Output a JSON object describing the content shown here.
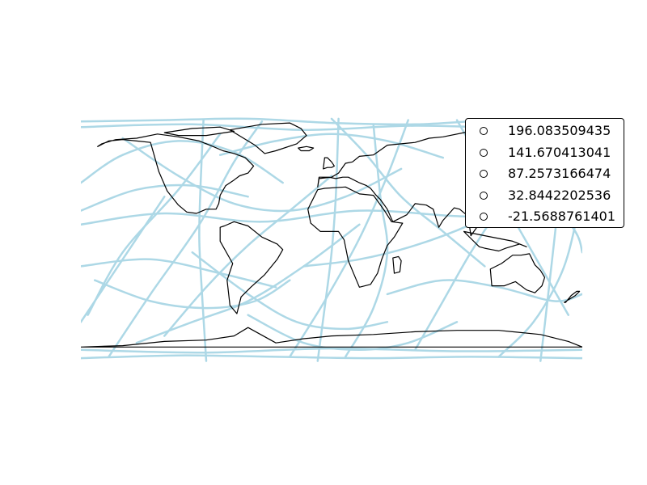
{
  "chart_data": {
    "type": "line",
    "title": "",
    "xlabel": "",
    "ylabel": "",
    "projection": "equirectangular",
    "xlim": [
      -180,
      180
    ],
    "ylim": [
      -90,
      90
    ],
    "grid": false,
    "axes_visible": false,
    "coastline_color": "#000000",
    "track_color": "#add8e6",
    "legend": {
      "placement": "upper right",
      "marker": "open circle",
      "entries": [
        "196.083509435",
        "141.670413041",
        "87.2573166474",
        "32.8442202536",
        "-21.5688761401"
      ]
    },
    "series": [
      {
        "lon": [
          -180,
          -120,
          -60,
          0,
          60,
          120,
          180
        ],
        "lat": [
          84,
          85,
          86,
          83,
          82,
          85,
          84
        ]
      },
      {
        "lon": [
          -180,
          -100,
          -20,
          60,
          140,
          180
        ],
        "lat": [
          80,
          82,
          78,
          81,
          79,
          80
        ]
      },
      {
        "lon": [
          -180,
          -110,
          -40,
          30,
          100,
          180
        ],
        "lat": [
          -86,
          -84,
          -85,
          -86,
          -85,
          -86
        ]
      },
      {
        "lon": [
          -180,
          -90,
          0,
          90,
          180
        ],
        "lat": [
          -80,
          -82,
          -79,
          -81,
          -80
        ]
      },
      {
        "lon": [
          -160,
          -130,
          -95,
          -70,
          -50
        ],
        "lat": [
          -85,
          -40,
          10,
          55,
          84
        ]
      },
      {
        "lon": [
          -175,
          -150,
          -110,
          -80
        ],
        "lat": [
          -55,
          -10,
          35,
          75
        ]
      },
      {
        "lon": [
          -180,
          -150,
          -110,
          -70,
          -35
        ],
        "lat": [
          40,
          60,
          70,
          62,
          40
        ]
      },
      {
        "lon": [
          -120,
          -90,
          -60,
          -30,
          0
        ],
        "lat": [
          -70,
          -35,
          -5,
          20,
          45
        ]
      },
      {
        "lon": [
          -90,
          -93,
          -95,
          -94,
          -92
        ],
        "lat": [
          -88,
          -40,
          0,
          40,
          85
        ]
      },
      {
        "lon": [
          -180,
          -140,
          -100,
          -60
        ],
        "lat": [
          20,
          35,
          38,
          30
        ]
      },
      {
        "lon": [
          -170,
          -130,
          -90,
          -55,
          -30
        ],
        "lat": [
          -30,
          -45,
          -50,
          -45,
          -30
        ]
      },
      {
        "lon": [
          -100,
          -60,
          -25,
          10,
          40
        ],
        "lat": [
          -10,
          -40,
          -60,
          -65,
          -60
        ]
      },
      {
        "lon": [
          -60,
          -20,
          20,
          55,
          90
        ],
        "lat": [
          -55,
          -75,
          -80,
          -75,
          -60
        ]
      },
      {
        "lon": [
          -30,
          -5,
          20,
          40,
          55
        ],
        "lat": [
          -85,
          -45,
          0,
          45,
          85
        ]
      },
      {
        "lon": [
          0,
          25,
          50,
          80,
          110
        ],
        "lat": [
          86,
          60,
          30,
          5,
          -20
        ]
      },
      {
        "lon": [
          10,
          30,
          40,
          35,
          30
        ],
        "lat": [
          -85,
          -50,
          -10,
          30,
          82
        ]
      },
      {
        "lon": [
          60,
          80,
          100,
          120,
          150
        ],
        "lat": [
          -80,
          -45,
          -10,
          20,
          55
        ]
      },
      {
        "lon": [
          90,
          110,
          130,
          150,
          170
        ],
        "lat": [
          85,
          50,
          15,
          -20,
          -55
        ]
      },
      {
        "lon": [
          120,
          145,
          165,
          175,
          180
        ],
        "lat": [
          -85,
          -60,
          -25,
          10,
          40
        ]
      },
      {
        "lon": [
          -180,
          -120,
          -50,
          20,
          90,
          150,
          180
        ],
        "lat": [
          10,
          18,
          12,
          20,
          16,
          14,
          10
        ]
      },
      {
        "lon": [
          -80,
          -40,
          0,
          40,
          80
        ],
        "lat": [
          60,
          70,
          75,
          70,
          58
        ]
      },
      {
        "lon": [
          -180,
          -130,
          -80,
          -40
        ],
        "lat": [
          -20,
          -15,
          -25,
          -35
        ]
      },
      {
        "lon": [
          40,
          80,
          120,
          160,
          180
        ],
        "lat": [
          -40,
          -30,
          -35,
          -45,
          -40
        ]
      },
      {
        "lon": [
          -140,
          -100,
          -60,
          -20,
          20
        ],
        "lat": [
          -75,
          -60,
          -45,
          -20,
          10
        ]
      },
      {
        "lon": [
          -20,
          20,
          60,
          100,
          140
        ],
        "lat": [
          -20,
          -15,
          -5,
          10,
          30
        ]
      },
      {
        "lon": [
          100,
          130,
          155,
          175,
          180
        ],
        "lat": [
          70,
          55,
          30,
          5,
          -10
        ]
      },
      {
        "lon": [
          -180,
          -160,
          -140,
          -120
        ],
        "lat": [
          -60,
          -30,
          0,
          30
        ]
      },
      {
        "lon": [
          -10,
          -5,
          0,
          3,
          5
        ],
        "lat": [
          -88,
          -50,
          -10,
          30,
          86
        ]
      },
      {
        "lon": [
          150,
          155,
          160,
          165
        ],
        "lat": [
          -88,
          -45,
          0,
          45
        ]
      },
      {
        "lon": [
          -150,
          -110,
          -70,
          -30,
          10,
          50
        ],
        "lat": [
          72,
          45,
          25,
          20,
          30,
          50
        ]
      }
    ],
    "coastlines": [
      {
        "name": "north-america",
        "lon": [
          -168,
          -160,
          -150,
          -140,
          -130,
          -124,
          -118,
          -110,
          -104,
          -97,
          -90,
          -83,
          -81,
          -80,
          -76,
          -70,
          -66,
          -60,
          -56,
          -62,
          -70,
          -78,
          -85,
          -95,
          -110,
          -125,
          -140,
          -155,
          -165,
          -168
        ],
        "lat": [
          66,
          70,
          71,
          70,
          69,
          48,
          34,
          24,
          19,
          18,
          21,
          21,
          25,
          31,
          38,
          42,
          45,
          47,
          52,
          58,
          61,
          63,
          66,
          70,
          73,
          75,
          72,
          71,
          68,
          66
        ]
      },
      {
        "name": "south-america",
        "lon": [
          -80,
          -77,
          -70,
          -60,
          -50,
          -39,
          -35,
          -39,
          -48,
          -58,
          -65,
          -68,
          -73,
          -75,
          -71,
          -80
        ],
        "lat": [
          8,
          9,
          12,
          9,
          1,
          -4,
          -8,
          -15,
          -26,
          -35,
          -42,
          -54,
          -48,
          -30,
          -18,
          -2
        ]
      },
      {
        "name": "greenland",
        "lon": [
          -73,
          -50,
          -30,
          -22,
          -18,
          -25,
          -40,
          -48,
          -55,
          -73
        ],
        "lat": [
          78,
          82,
          83,
          79,
          74,
          68,
          63,
          61,
          67,
          78
        ]
      },
      {
        "name": "europe-asia",
        "lon": [
          -10,
          -9,
          0,
          5,
          10,
          15,
          20,
          30,
          40,
          50,
          60,
          70,
          80,
          100,
          120,
          140,
          160,
          180,
          180,
          165,
          155,
          142,
          140,
          135,
          130,
          125,
          122,
          121,
          110,
          108,
          105,
          100,
          98,
          92,
          88,
          80,
          77,
          73,
          68,
          60,
          57,
          54,
          50,
          44,
          43,
          40,
          35,
          32,
          28,
          25,
          20,
          12,
          8,
          3,
          -2,
          -9,
          -10
        ],
        "lat": [
          37,
          43,
          44,
          47,
          54,
          55,
          59,
          60,
          67,
          68,
          69,
          72,
          73,
          77,
          73,
          72,
          70,
          69,
          66,
          62,
          59,
          53,
          47,
          42,
          35,
          39,
          32,
          25,
          21,
          17,
          9,
          2,
          16,
          21,
          22,
          13,
          8,
          21,
          24,
          25,
          21,
          17,
          15,
          12,
          14,
          21,
          28,
          31,
          36,
          38,
          40,
          44,
          44,
          43,
          44,
          44,
          37
        ]
      },
      {
        "name": "africa",
        "lon": [
          -17,
          -10,
          -5,
          10,
          20,
          30,
          33,
          38,
          43,
          51,
          45,
          40,
          36,
          33,
          28,
          20,
          17,
          12,
          9,
          5,
          0,
          -8,
          -15,
          -17
        ],
        "lat": [
          21,
          35,
          36,
          37,
          32,
          31,
          27,
          20,
          12,
          11,
          1,
          -5,
          -15,
          -25,
          -33,
          -35,
          -28,
          -16,
          -1,
          5,
          5,
          5,
          11,
          21
        ]
      },
      {
        "name": "australia",
        "lon": [
          114,
          122,
          130,
          136,
          142,
          146,
          150,
          153,
          151,
          146,
          140,
          132,
          124,
          115,
          114
        ],
        "lat": [
          -22,
          -18,
          -12,
          -12,
          -11,
          -19,
          -23,
          -28,
          -34,
          -39,
          -37,
          -31,
          -34,
          -34,
          -22
        ]
      },
      {
        "name": "antarctica",
        "lon": [
          -180,
          -150,
          -120,
          -90,
          -70,
          -60,
          -40,
          -20,
          0,
          30,
          60,
          90,
          120,
          150,
          170,
          180
        ],
        "lat": [
          -78,
          -77,
          -74,
          -73,
          -70,
          -64,
          -75,
          -72,
          -70,
          -69,
          -67,
          -66,
          -66,
          -69,
          -74,
          -78
        ]
      },
      {
        "name": "madagascar",
        "lon": [
          44,
          48,
          50,
          49,
          45,
          44
        ],
        "lat": [
          -14,
          -13,
          -16,
          -24,
          -25,
          -14
        ]
      },
      {
        "name": "new-zealand",
        "lon": [
          168,
          172,
          176,
          178,
          175,
          170,
          167,
          168
        ],
        "lat": [
          -46,
          -41,
          -38,
          -38,
          -41,
          -44,
          -46,
          -46
        ]
      },
      {
        "name": "great-britain",
        "lon": [
          -6,
          -3,
          0,
          2,
          0,
          -3,
          -5,
          -6
        ],
        "lat": [
          50,
          51,
          51,
          52,
          55,
          58,
          58,
          50
        ]
      },
      {
        "name": "japan",
        "lon": [
          130,
          135,
          140,
          142,
          141,
          136,
          130
        ],
        "lat": [
          31,
          34,
          36,
          40,
          45,
          37,
          31
        ]
      },
      {
        "name": "indonesia",
        "lon": [
          95,
          100,
          106,
          110,
          115,
          120,
          125,
          135,
          140,
          130,
          120,
          110,
          100,
          95
        ],
        "lat": [
          5,
          0,
          -6,
          -7,
          -8,
          -9,
          -7,
          -4,
          -6,
          -2,
          0,
          2,
          4,
          5
        ]
      },
      {
        "name": "iceland",
        "lon": [
          -24,
          -18,
          -13,
          -16,
          -22,
          -24
        ],
        "lat": [
          65,
          66,
          65,
          63,
          63,
          65
        ]
      },
      {
        "name": "arctic-islands",
        "lon": [
          -120,
          -100,
          -80,
          -70,
          -90,
          -110,
          -120
        ],
        "lat": [
          76,
          79,
          80,
          77,
          74,
          74,
          76
        ]
      }
    ]
  }
}
